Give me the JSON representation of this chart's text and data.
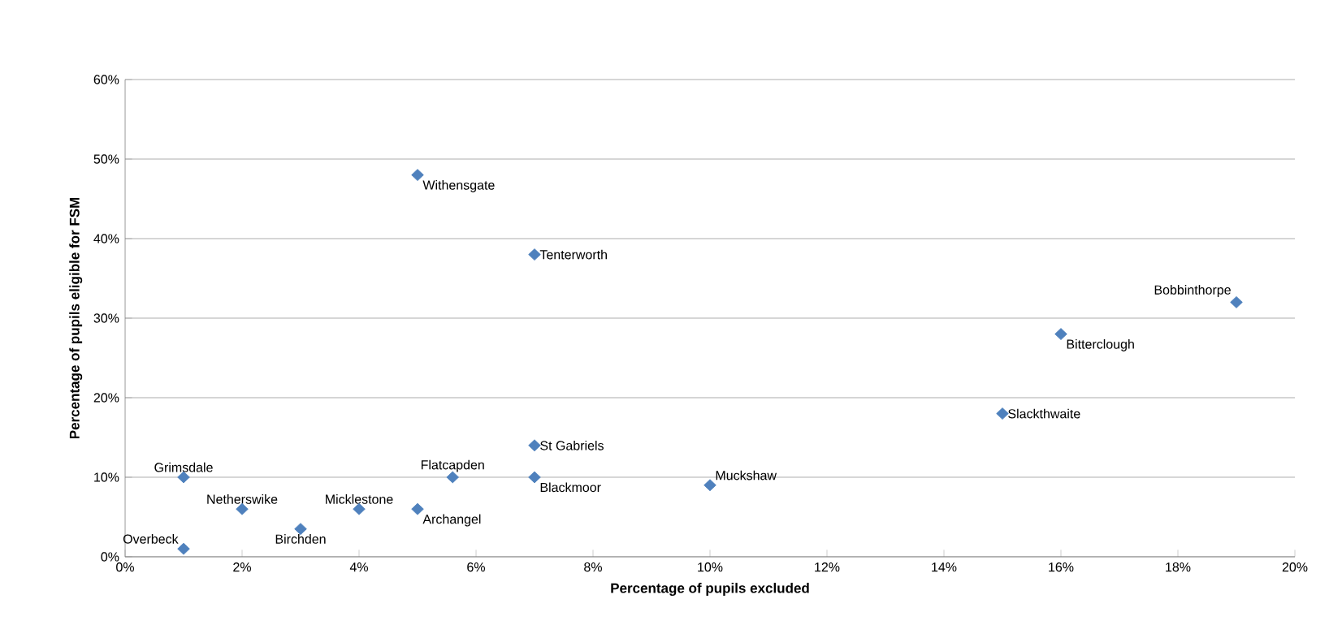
{
  "chart_data": {
    "type": "scatter",
    "xlabel": "Percentage of pupils excluded",
    "ylabel": "Percentage of pupils eligible for FSM",
    "x": [
      5,
      7,
      19,
      16,
      15,
      7,
      1,
      5.6,
      7,
      10,
      2,
      4,
      5,
      1,
      3
    ],
    "values": [
      48,
      38,
      32,
      28,
      18,
      14,
      10,
      10,
      10,
      9,
      6,
      6,
      6,
      1,
      3.5
    ],
    "color": "#4f81bd",
    "marker": "diamond",
    "grid": "y",
    "xlim": [
      0,
      20
    ],
    "ylim": [
      0,
      60
    ],
    "xticks": [
      {
        "value": 0,
        "label": "0%"
      },
      {
        "value": 2,
        "label": "2%"
      },
      {
        "value": 4,
        "label": "4%"
      },
      {
        "value": 6,
        "label": "6%"
      },
      {
        "value": 8,
        "label": "8%"
      },
      {
        "value": 10,
        "label": "10%"
      },
      {
        "value": 12,
        "label": "12%"
      },
      {
        "value": 14,
        "label": "14%"
      },
      {
        "value": 16,
        "label": "16%"
      },
      {
        "value": 18,
        "label": "18%"
      },
      {
        "value": 20,
        "label": "20%"
      }
    ],
    "yticks": [
      {
        "value": 0,
        "label": "0%"
      },
      {
        "value": 10,
        "label": "10%"
      },
      {
        "value": 20,
        "label": "20%"
      },
      {
        "value": 30,
        "label": "30%"
      },
      {
        "value": 40,
        "label": "40%"
      },
      {
        "value": 50,
        "label": "50%"
      },
      {
        "value": 60,
        "label": "60%"
      }
    ],
    "annotations": [
      {
        "text": "Withensgate",
        "x": 5,
        "y": 48
      },
      {
        "text": "Tenterworth",
        "x": 7,
        "y": 38
      },
      {
        "text": "Bobbinthorpe",
        "x": 19,
        "y": 32
      },
      {
        "text": "Bitterclough",
        "x": 16,
        "y": 28
      },
      {
        "text": "Slackthwaite",
        "x": 15,
        "y": 18
      },
      {
        "text": "St Gabriels",
        "x": 7,
        "y": 14
      },
      {
        "text": "Grimsdale",
        "x": 1,
        "y": 10
      },
      {
        "text": "Flatcapden",
        "x": 5.6,
        "y": 10
      },
      {
        "text": "Blackmoor",
        "x": 7,
        "y": 10
      },
      {
        "text": "Muckshaw",
        "x": 10,
        "y": 9
      },
      {
        "text": "Netherswike",
        "x": 2,
        "y": 6
      },
      {
        "text": "Micklestone",
        "x": 4,
        "y": 6
      },
      {
        "text": "Archangel",
        "x": 5,
        "y": 6
      },
      {
        "text": "Overbeck",
        "x": 1,
        "y": 1
      },
      {
        "text": "Birchden",
        "x": 3,
        "y": 3.5
      }
    ]
  }
}
